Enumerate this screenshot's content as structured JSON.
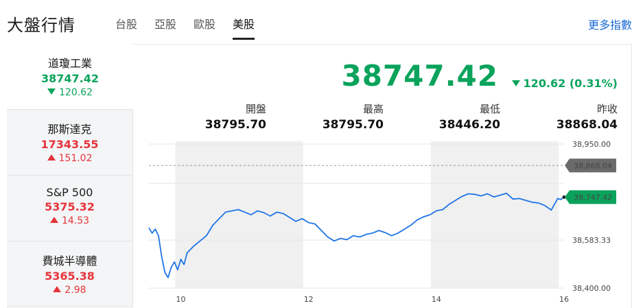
{
  "header": {
    "title": "大盤行情",
    "tabs": [
      "台股",
      "亞股",
      "歐股",
      "美股"
    ],
    "active_tab": "美股",
    "more_link": "更多指數"
  },
  "sidebar": {
    "items": [
      {
        "name": "道瓊工業",
        "price": "38747.42",
        "change": "120.62",
        "direction": "down"
      },
      {
        "name": "那斯達克",
        "price": "17343.55",
        "change": "151.02",
        "direction": "up"
      },
      {
        "name": "S&P 500",
        "price": "5375.32",
        "change": "14.53",
        "direction": "up"
      },
      {
        "name": "費城半導體",
        "price": "5365.38",
        "change": "2.98",
        "direction": "up"
      }
    ]
  },
  "main": {
    "price": "38747.42",
    "change": "120.62 (0.31%)",
    "direction": "down",
    "stats": [
      {
        "label": "開盤",
        "value": "38795.70"
      },
      {
        "label": "最高",
        "value": "38795.70"
      },
      {
        "label": "最低",
        "value": "38446.20"
      },
      {
        "label": "昨收",
        "value": "38868.04"
      }
    ]
  },
  "colors": {
    "up": "#e5343b",
    "down": "#0aa35c",
    "line": "#1f74e8",
    "link": "#1a6ad8",
    "shade": "#f0f0f0"
  },
  "chart_data": {
    "type": "line",
    "x_ticks": [
      "10",
      "12",
      "14",
      "16"
    ],
    "y_ticks": [
      "38,950.00",
      "38,583.33",
      "38,400.00"
    ],
    "ylim": [
      38400,
      38950
    ],
    "xlim": [
      9.5,
      16
    ],
    "reference_line": {
      "value": 38868.04,
      "label": "38,868.04"
    },
    "last_price_label": "38,747.42",
    "series": [
      {
        "points": [
          [
            9.5,
            38630
          ],
          [
            9.55,
            38610
          ],
          [
            9.6,
            38625
          ],
          [
            9.65,
            38600
          ],
          [
            9.7,
            38520
          ],
          [
            9.75,
            38460
          ],
          [
            9.8,
            38440
          ],
          [
            9.85,
            38480
          ],
          [
            9.9,
            38500
          ],
          [
            9.95,
            38470
          ],
          [
            10.0,
            38510
          ],
          [
            10.05,
            38490
          ],
          [
            10.1,
            38535
          ],
          [
            10.2,
            38560
          ],
          [
            10.3,
            38580
          ],
          [
            10.4,
            38600
          ],
          [
            10.5,
            38640
          ],
          [
            10.6,
            38665
          ],
          [
            10.7,
            38690
          ],
          [
            10.8,
            38695
          ],
          [
            10.9,
            38700
          ],
          [
            11.0,
            38690
          ],
          [
            11.1,
            38680
          ],
          [
            11.2,
            38695
          ],
          [
            11.3,
            38688
          ],
          [
            11.4,
            38675
          ],
          [
            11.5,
            38690
          ],
          [
            11.6,
            38685
          ],
          [
            11.7,
            38670
          ],
          [
            11.8,
            38655
          ],
          [
            11.9,
            38665
          ],
          [
            12.0,
            38650
          ],
          [
            12.1,
            38645
          ],
          [
            12.2,
            38620
          ],
          [
            12.3,
            38595
          ],
          [
            12.4,
            38580
          ],
          [
            12.5,
            38590
          ],
          [
            12.6,
            38585
          ],
          [
            12.7,
            38600
          ],
          [
            12.8,
            38595
          ],
          [
            12.9,
            38605
          ],
          [
            13.0,
            38610
          ],
          [
            13.1,
            38620
          ],
          [
            13.2,
            38612
          ],
          [
            13.3,
            38600
          ],
          [
            13.4,
            38610
          ],
          [
            13.5,
            38625
          ],
          [
            13.6,
            38640
          ],
          [
            13.7,
            38660
          ],
          [
            13.8,
            38672
          ],
          [
            13.9,
            38680
          ],
          [
            14.0,
            38695
          ],
          [
            14.1,
            38700
          ],
          [
            14.2,
            38720
          ],
          [
            14.3,
            38735
          ],
          [
            14.4,
            38750
          ],
          [
            14.5,
            38760
          ],
          [
            14.6,
            38758
          ],
          [
            14.7,
            38752
          ],
          [
            14.8,
            38760
          ],
          [
            14.9,
            38748
          ],
          [
            15.0,
            38755
          ],
          [
            15.1,
            38762
          ],
          [
            15.2,
            38740
          ],
          [
            15.3,
            38742
          ],
          [
            15.4,
            38735
          ],
          [
            15.5,
            38728
          ],
          [
            15.6,
            38725
          ],
          [
            15.7,
            38715
          ],
          [
            15.8,
            38698
          ],
          [
            15.85,
            38720
          ],
          [
            15.9,
            38742
          ],
          [
            15.95,
            38738
          ],
          [
            16.0,
            38747.42
          ]
        ]
      }
    ]
  }
}
